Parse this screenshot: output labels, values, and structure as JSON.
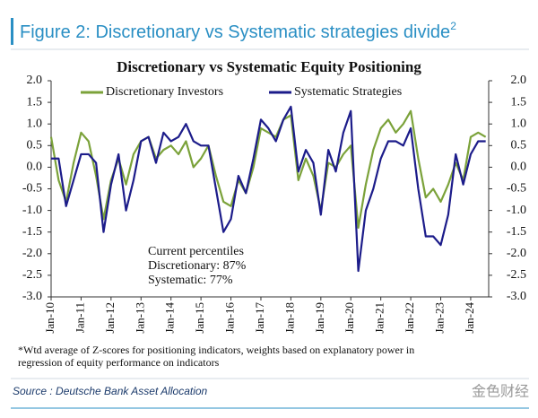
{
  "header": {
    "title": "Figure 2: Discretionary vs Systematic strategies divide",
    "superscript": "2"
  },
  "chart_data": {
    "type": "line",
    "title": "Discretionary  vs Systematic Equity Positioning",
    "x": [
      2010,
      2010.25,
      2010.5,
      2010.75,
      2011,
      2011.25,
      2011.5,
      2011.75,
      2012,
      2012.25,
      2012.5,
      2012.75,
      2013,
      2013.25,
      2013.5,
      2013.75,
      2014,
      2014.25,
      2014.5,
      2014.75,
      2015,
      2015.25,
      2015.5,
      2015.75,
      2016,
      2016.25,
      2016.5,
      2016.75,
      2017,
      2017.25,
      2017.5,
      2017.75,
      2018,
      2018.25,
      2018.5,
      2018.75,
      2019,
      2019.25,
      2019.5,
      2019.75,
      2020,
      2020.25,
      2020.5,
      2020.75,
      2021,
      2021.25,
      2021.5,
      2021.75,
      2022,
      2022.25,
      2022.5,
      2022.75,
      2023,
      2023.25,
      2023.5,
      2023.75,
      2024,
      2024.25,
      2024.5
    ],
    "series": [
      {
        "name": "Discretionary Investors",
        "color": "#7ba23a",
        "values": [
          0.7,
          -0.3,
          -0.8,
          0.1,
          0.8,
          0.6,
          -0.2,
          -1.2,
          -0.3,
          0.2,
          -0.4,
          0.3,
          0.6,
          0.7,
          0.2,
          0.4,
          0.5,
          0.3,
          0.6,
          0.0,
          0.2,
          0.5,
          -0.2,
          -0.8,
          -0.9,
          -0.3,
          -0.6,
          0.0,
          0.9,
          0.8,
          0.7,
          1.1,
          1.2,
          -0.3,
          0.2,
          -0.2,
          -1.0,
          0.1,
          0.0,
          0.3,
          0.5,
          -1.4,
          -0.4,
          0.4,
          0.9,
          1.1,
          0.8,
          1.0,
          1.3,
          0.2,
          -0.7,
          -0.5,
          -0.8,
          -0.4,
          0.1,
          -0.3,
          0.7,
          0.8,
          0.7
        ]
      },
      {
        "name": "Systematic Strategies",
        "color": "#1c1c8a",
        "values": [
          0.2,
          0.2,
          -0.9,
          -0.3,
          0.3,
          0.3,
          0.1,
          -1.5,
          -0.4,
          0.3,
          -1.0,
          -0.3,
          0.6,
          0.7,
          0.1,
          0.8,
          0.6,
          0.7,
          1.0,
          0.6,
          0.5,
          0.5,
          -0.5,
          -1.5,
          -1.2,
          -0.2,
          -0.6,
          0.2,
          1.1,
          0.9,
          0.6,
          1.1,
          1.4,
          -0.1,
          0.4,
          0.1,
          -1.1,
          0.4,
          -0.1,
          0.8,
          1.3,
          -2.4,
          -1.0,
          -0.5,
          0.2,
          0.6,
          0.6,
          0.5,
          0.9,
          -0.5,
          -1.6,
          -1.6,
          -1.8,
          -1.1,
          0.3,
          -0.4,
          0.3,
          0.6,
          0.6
        ]
      }
    ],
    "xlim": [
      2010,
      2024.6
    ],
    "xticks": [
      {
        "value": 2010,
        "label": "Jan-10"
      },
      {
        "value": 2011,
        "label": "Jan-11"
      },
      {
        "value": 2012,
        "label": "Jan-12"
      },
      {
        "value": 2013,
        "label": "Jan-13"
      },
      {
        "value": 2014,
        "label": "Jan-14"
      },
      {
        "value": 2015,
        "label": "Jan-15"
      },
      {
        "value": 2016,
        "label": "Jan-16"
      },
      {
        "value": 2017,
        "label": "Jan-17"
      },
      {
        "value": 2018,
        "label": "Jan-18"
      },
      {
        "value": 2019,
        "label": "Jan-19"
      },
      {
        "value": 2020,
        "label": "Jan-20"
      },
      {
        "value": 2021,
        "label": "Jan-21"
      },
      {
        "value": 2022,
        "label": "Jan-22"
      },
      {
        "value": 2023,
        "label": "Jan-23"
      },
      {
        "value": 2024,
        "label": "Jan-24"
      }
    ],
    "ylim": [
      -3,
      2
    ],
    "yticks": [
      {
        "value": 2,
        "label": "2.0"
      },
      {
        "value": 1.5,
        "label": "1.5"
      },
      {
        "value": 1,
        "label": "1.0"
      },
      {
        "value": 0.5,
        "label": "0.5"
      },
      {
        "value": 0,
        "label": "0.0"
      },
      {
        "value": -0.5,
        "label": "-0.5"
      },
      {
        "value": -1,
        "label": "-1.0"
      },
      {
        "value": -1.5,
        "label": "-1.5"
      },
      {
        "value": -2,
        "label": "-2.0"
      },
      {
        "value": -2.5,
        "label": "-2.5"
      },
      {
        "value": -3,
        "label": "-3.0"
      }
    ],
    "y2lim": [
      -3,
      2
    ],
    "y2ticks": [
      {
        "value": 2,
        "label": "2.0"
      },
      {
        "value": 1.5,
        "label": "1.5"
      },
      {
        "value": 1,
        "label": "1.0"
      },
      {
        "value": 0.5,
        "label": "0.5"
      },
      {
        "value": 0,
        "label": "0.0"
      },
      {
        "value": -0.5,
        "label": "-0.5"
      },
      {
        "value": -1,
        "label": "-1.0"
      },
      {
        "value": -1.5,
        "label": "-1.5"
      },
      {
        "value": -2,
        "label": "-2.0"
      },
      {
        "value": -2.5,
        "label": "-2.5"
      },
      {
        "value": -3,
        "label": "-3.0"
      }
    ],
    "legend": "top",
    "annotations": [
      "Current percentiles",
      "Discretionary: 87%",
      "Systematic: 77%"
    ]
  },
  "footnote": [
    "*Wtd average of Z-scores for positioning indicators, weights based on explanatory power in",
    "regression of equity performance on indicators"
  ],
  "source": "Source : Deutsche Bank Asset Allocation",
  "watermark": "金色财经"
}
